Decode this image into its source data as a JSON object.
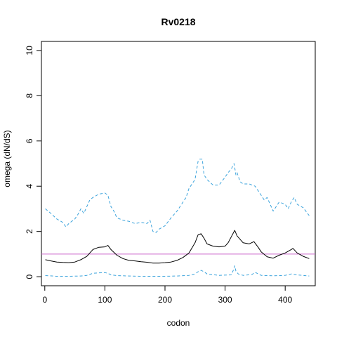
{
  "chart_data": {
    "type": "line",
    "title": "Rv0218",
    "xlabel": "codon",
    "ylabel": "omega (dN/dS)",
    "xlim": [
      -5.6,
      450
    ],
    "ylim": [
      -0.4,
      10.4
    ],
    "xticks": [
      0,
      100,
      200,
      300,
      400
    ],
    "yticks": [
      0,
      2,
      4,
      6,
      8,
      10
    ],
    "reference_line": {
      "y": 1,
      "color": "#cc66cc"
    },
    "grid": false,
    "series": [
      {
        "style": "solid",
        "color": "#000000",
        "x": [
          1,
          10,
          20,
          30,
          40,
          50,
          60,
          70,
          80,
          90,
          100,
          105,
          110,
          120,
          130,
          140,
          150,
          160,
          170,
          180,
          190,
          200,
          210,
          220,
          230,
          240,
          250,
          255,
          260,
          265,
          270,
          280,
          290,
          300,
          305,
          310,
          316,
          320,
          330,
          340,
          348,
          355,
          360,
          370,
          380,
          390,
          400,
          410,
          413,
          420,
          430,
          440
        ],
        "y": [
          0.75,
          0.7,
          0.65,
          0.63,
          0.62,
          0.65,
          0.75,
          0.9,
          1.2,
          1.3,
          1.32,
          1.38,
          1.2,
          0.95,
          0.8,
          0.72,
          0.7,
          0.66,
          0.64,
          0.6,
          0.6,
          0.62,
          0.65,
          0.72,
          0.85,
          1.05,
          1.5,
          1.85,
          1.9,
          1.7,
          1.45,
          1.35,
          1.32,
          1.35,
          1.5,
          1.75,
          2.05,
          1.8,
          1.5,
          1.45,
          1.55,
          1.3,
          1.1,
          0.88,
          0.82,
          0.95,
          1.05,
          1.2,
          1.25,
          1.05,
          0.9,
          0.8
        ]
      },
      {
        "style": "dashed",
        "color": "#3ba3dc",
        "x": [
          1,
          10,
          20,
          30,
          35,
          40,
          50,
          55,
          60,
          65,
          70,
          75,
          80,
          90,
          100,
          105,
          110,
          115,
          120,
          130,
          140,
          150,
          160,
          170,
          175,
          180,
          185,
          190,
          200,
          210,
          220,
          230,
          235,
          240,
          245,
          250,
          255,
          258,
          262,
          265,
          270,
          280,
          290,
          300,
          305,
          310,
          315,
          318,
          320,
          325,
          330,
          340,
          350,
          360,
          365,
          370,
          375,
          380,
          385,
          390,
          400,
          405,
          410,
          415,
          420,
          430,
          440
        ],
        "y": [
          3.0,
          2.8,
          2.55,
          2.4,
          2.2,
          2.35,
          2.55,
          2.75,
          3.0,
          2.8,
          3.1,
          3.4,
          3.5,
          3.65,
          3.7,
          3.6,
          3.1,
          2.9,
          2.6,
          2.5,
          2.45,
          2.35,
          2.4,
          2.35,
          2.5,
          2.0,
          1.95,
          2.1,
          2.25,
          2.6,
          2.9,
          3.3,
          3.5,
          3.9,
          4.1,
          4.3,
          5.1,
          5.2,
          5.2,
          4.5,
          4.3,
          4.05,
          4.05,
          4.4,
          4.6,
          4.75,
          5.0,
          4.5,
          4.6,
          4.2,
          4.1,
          4.1,
          4.0,
          3.6,
          3.4,
          3.5,
          3.2,
          2.9,
          3.1,
          3.3,
          3.2,
          3.0,
          3.3,
          3.5,
          3.2,
          3.05,
          2.7
        ]
      },
      {
        "style": "dashed",
        "color": "#3ba3dc",
        "x": [
          1,
          20,
          40,
          60,
          70,
          80,
          90,
          100,
          105,
          110,
          120,
          140,
          160,
          180,
          200,
          220,
          240,
          250,
          255,
          260,
          265,
          270,
          290,
          310,
          314,
          316,
          318,
          322,
          330,
          345,
          350,
          355,
          360,
          380,
          400,
          410,
          420,
          440
        ],
        "y": [
          0.05,
          0.02,
          0.02,
          0.03,
          0.06,
          0.15,
          0.17,
          0.18,
          0.15,
          0.08,
          0.05,
          0.03,
          0.02,
          0.02,
          0.02,
          0.03,
          0.06,
          0.12,
          0.22,
          0.28,
          0.22,
          0.12,
          0.06,
          0.08,
          0.3,
          0.48,
          0.25,
          0.12,
          0.06,
          0.1,
          0.2,
          0.12,
          0.06,
          0.04,
          0.06,
          0.12,
          0.08,
          0.03
        ]
      }
    ]
  }
}
